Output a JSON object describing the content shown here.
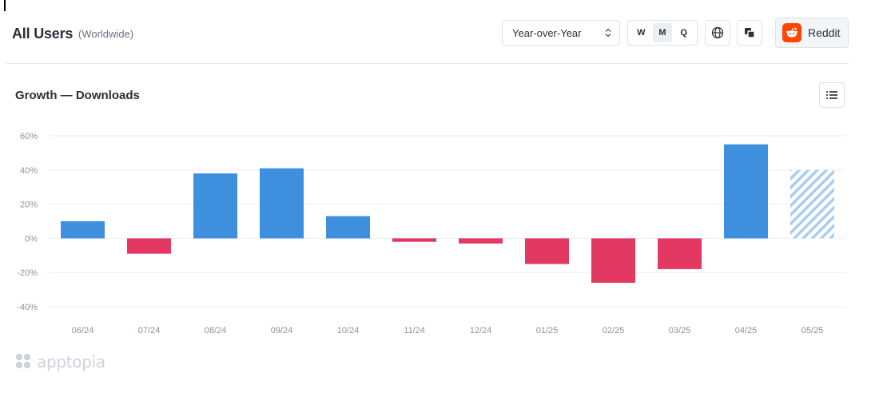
{
  "header": {
    "title": "All Users",
    "subtitle": "(Worldwide)",
    "comparison_select": {
      "value": "Year-over-Year"
    },
    "period_buttons": [
      {
        "label": "W",
        "active": false
      },
      {
        "label": "M",
        "active": true
      },
      {
        "label": "Q",
        "active": false
      }
    ],
    "globe_icon": "globe-icon",
    "compare_icon": "layers-icon",
    "app": {
      "name": "Reddit",
      "logo_color": "#ff4500"
    }
  },
  "panel": {
    "title": "Growth — Downloads",
    "menu_icon": "list-icon"
  },
  "watermark": {
    "text": "apptopia"
  },
  "chart_data": {
    "type": "bar",
    "title": "Growth — Downloads",
    "categories": [
      "06/24",
      "07/24",
      "08/24",
      "09/24",
      "10/24",
      "11/24",
      "12/24",
      "01/25",
      "02/25",
      "03/25",
      "04/25",
      "05/25"
    ],
    "values": [
      10,
      -9,
      38,
      41,
      13,
      -2,
      -3,
      -15,
      -26,
      -18,
      55,
      40
    ],
    "projected": [
      false,
      false,
      false,
      false,
      false,
      false,
      false,
      false,
      false,
      false,
      false,
      true
    ],
    "ylim": [
      -40,
      60
    ],
    "yticks": [
      60,
      40,
      20,
      0,
      -20,
      -40
    ],
    "ytick_labels": [
      "60%",
      "40%",
      "20%",
      "0%",
      "-20%",
      "-40%"
    ],
    "grid": true,
    "colors": {
      "positive": "#3f8fdf",
      "negative": "#e23862",
      "projected": "#a9cdf0",
      "grid": "#eceef2"
    }
  }
}
